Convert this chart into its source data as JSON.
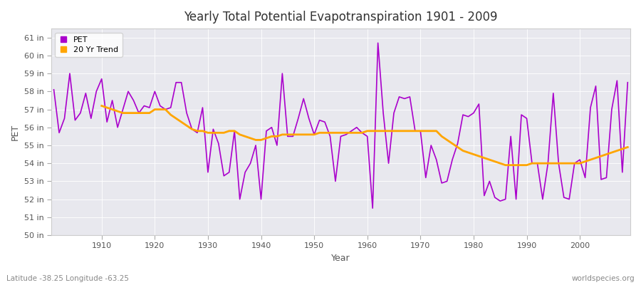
{
  "title": "Yearly Total Potential Evapotranspiration 1901 - 2009",
  "xlabel": "Year",
  "ylabel": "PET",
  "subtitle_left": "Latitude -38.25 Longitude -63.25",
  "subtitle_right": "worldspecies.org",
  "pet_color": "#AA00CC",
  "trend_color": "#FFA500",
  "background_color": "#F0F0F0",
  "plot_bg_color": "#E8E8EE",
  "ylim": [
    50,
    61.5
  ],
  "yticks": [
    50,
    51,
    52,
    53,
    54,
    55,
    56,
    57,
    58,
    59,
    60,
    61
  ],
  "ytick_labels": [
    "50 in",
    "51 in",
    "52 in",
    "53 in",
    "54 in",
    "55 in",
    "56 in",
    "57 in",
    "58 in",
    "59 in",
    "60 in",
    "61 in"
  ],
  "years": [
    1901,
    1902,
    1903,
    1904,
    1905,
    1906,
    1907,
    1908,
    1909,
    1910,
    1911,
    1912,
    1913,
    1914,
    1915,
    1916,
    1917,
    1918,
    1919,
    1920,
    1921,
    1922,
    1923,
    1924,
    1925,
    1926,
    1927,
    1928,
    1929,
    1930,
    1931,
    1932,
    1933,
    1934,
    1935,
    1936,
    1937,
    1938,
    1939,
    1940,
    1941,
    1942,
    1943,
    1944,
    1945,
    1946,
    1947,
    1948,
    1949,
    1950,
    1951,
    1952,
    1953,
    1954,
    1955,
    1956,
    1957,
    1958,
    1959,
    1960,
    1961,
    1962,
    1963,
    1964,
    1965,
    1966,
    1967,
    1968,
    1969,
    1970,
    1971,
    1972,
    1973,
    1974,
    1975,
    1976,
    1977,
    1978,
    1979,
    1980,
    1981,
    1982,
    1983,
    1984,
    1985,
    1986,
    1987,
    1988,
    1989,
    1990,
    1991,
    1992,
    1993,
    1994,
    1995,
    1996,
    1997,
    1998,
    1999,
    2000,
    2001,
    2002,
    2003,
    2004,
    2005,
    2006,
    2007,
    2008,
    2009
  ],
  "pet_values": [
    58.1,
    55.7,
    56.5,
    59.0,
    56.4,
    56.8,
    57.9,
    56.5,
    58.0,
    58.7,
    56.3,
    57.5,
    56.0,
    57.0,
    58.0,
    57.5,
    56.8,
    57.2,
    57.1,
    58.0,
    57.2,
    57.0,
    57.1,
    58.5,
    58.5,
    56.8,
    55.9,
    55.7,
    57.1,
    53.5,
    55.9,
    55.1,
    53.3,
    53.5,
    55.8,
    52.0,
    53.5,
    54.0,
    55.0,
    52.0,
    55.8,
    56.0,
    55.0,
    59.0,
    55.5,
    55.5,
    56.5,
    57.6,
    56.5,
    55.6,
    56.4,
    56.3,
    55.5,
    53.0,
    55.5,
    55.6,
    55.8,
    56.0,
    55.7,
    55.5,
    51.5,
    60.7,
    56.8,
    54.0,
    56.8,
    57.7,
    57.6,
    57.7,
    55.8,
    55.8,
    53.2,
    55.0,
    54.2,
    52.9,
    53.0,
    54.2,
    55.1,
    56.7,
    56.6,
    56.8,
    57.3,
    52.2,
    53.0,
    52.1,
    51.9,
    52.0,
    55.5,
    52.0,
    56.7,
    56.5,
    54.0,
    54.0,
    52.0,
    54.0,
    57.9,
    54.0,
    52.1,
    52.0,
    54.0,
    54.2,
    53.2,
    57.1,
    58.3,
    53.1,
    53.2,
    57.0,
    58.6,
    53.5,
    58.5
  ],
  "trend_years": [
    1910,
    1911,
    1912,
    1913,
    1914,
    1915,
    1916,
    1917,
    1918,
    1919,
    1920,
    1921,
    1922,
    1923,
    1924,
    1925,
    1926,
    1927,
    1928,
    1929,
    1930,
    1931,
    1932,
    1933,
    1934,
    1935,
    1936,
    1937,
    1938,
    1939,
    1940,
    1941,
    1942,
    1943,
    1944,
    1945,
    1946,
    1947,
    1948,
    1949,
    1950,
    1951,
    1952,
    1953,
    1954,
    1955,
    1956,
    1957,
    1958,
    1959,
    1960,
    1961,
    1962,
    1963,
    1964,
    1965,
    1966,
    1967,
    1968,
    1969,
    1970,
    1971,
    1972,
    1973,
    1974,
    1975,
    1976,
    1977,
    1978,
    1979,
    1980,
    1981,
    1982,
    1983,
    1984,
    1985,
    1986,
    1987,
    1988,
    1989,
    1990,
    1991,
    1992,
    1993,
    1994,
    1995,
    1996,
    1997,
    1998,
    1999,
    2000,
    2001,
    2002,
    2003,
    2004,
    2005,
    2006,
    2007,
    2008,
    2009
  ],
  "trend_values": [
    57.2,
    57.1,
    57.0,
    56.9,
    56.8,
    56.8,
    56.8,
    56.8,
    56.8,
    56.8,
    57.0,
    57.0,
    57.0,
    56.7,
    56.5,
    56.3,
    56.1,
    55.9,
    55.8,
    55.8,
    55.7,
    55.7,
    55.7,
    55.7,
    55.8,
    55.8,
    55.6,
    55.5,
    55.4,
    55.3,
    55.3,
    55.4,
    55.5,
    55.5,
    55.6,
    55.6,
    55.6,
    55.6,
    55.6,
    55.6,
    55.6,
    55.7,
    55.7,
    55.7,
    55.7,
    55.7,
    55.7,
    55.7,
    55.7,
    55.7,
    55.8,
    55.8,
    55.8,
    55.8,
    55.8,
    55.8,
    55.8,
    55.8,
    55.8,
    55.8,
    55.8,
    55.8,
    55.8,
    55.8,
    55.5,
    55.3,
    55.1,
    54.9,
    54.7,
    54.6,
    54.5,
    54.4,
    54.3,
    54.2,
    54.1,
    54.0,
    53.9,
    53.9,
    53.9,
    53.9,
    53.9,
    54.0,
    54.0,
    54.0,
    54.0,
    54.0,
    54.0,
    54.0,
    54.0,
    54.0,
    54.0,
    54.1,
    54.2,
    54.3,
    54.4,
    54.5,
    54.6,
    54.7,
    54.8,
    54.9
  ],
  "figsize": [
    9.0,
    4.0
  ],
  "dpi": 100
}
